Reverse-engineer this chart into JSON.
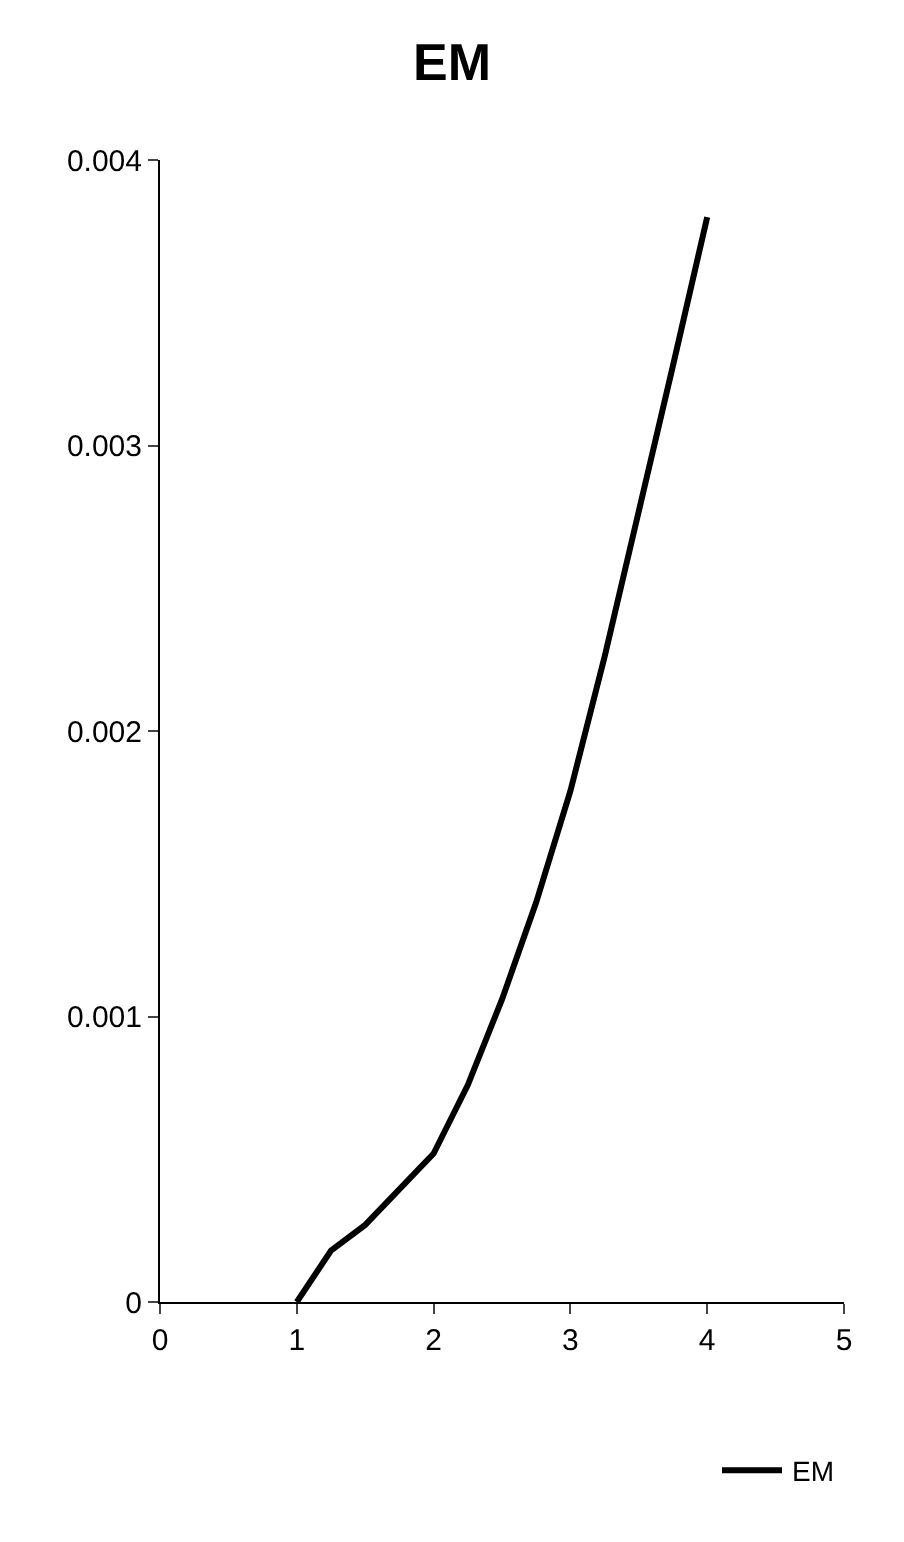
{
  "chart_data": {
    "type": "line",
    "title": "EM",
    "x": [
      1,
      1.25,
      1.5,
      2,
      2.25,
      2.5,
      2.75,
      3,
      3.25,
      3.5,
      3.75,
      4
    ],
    "series": [
      {
        "name": "EM",
        "color": "#000000",
        "values": [
          0,
          0.00018,
          0.00027,
          0.00052,
          0.00076,
          0.00106,
          0.0014,
          0.00179,
          0.00226,
          0.00277,
          0.00328,
          0.0038
        ]
      }
    ],
    "xlim": [
      0,
      5
    ],
    "xticks": [
      0,
      1,
      2,
      3,
      4,
      5
    ],
    "ylim": [
      0,
      0.004
    ],
    "yticks": [
      0,
      0.001,
      0.002,
      0.003,
      0.004
    ],
    "legend": "bottom right"
  }
}
